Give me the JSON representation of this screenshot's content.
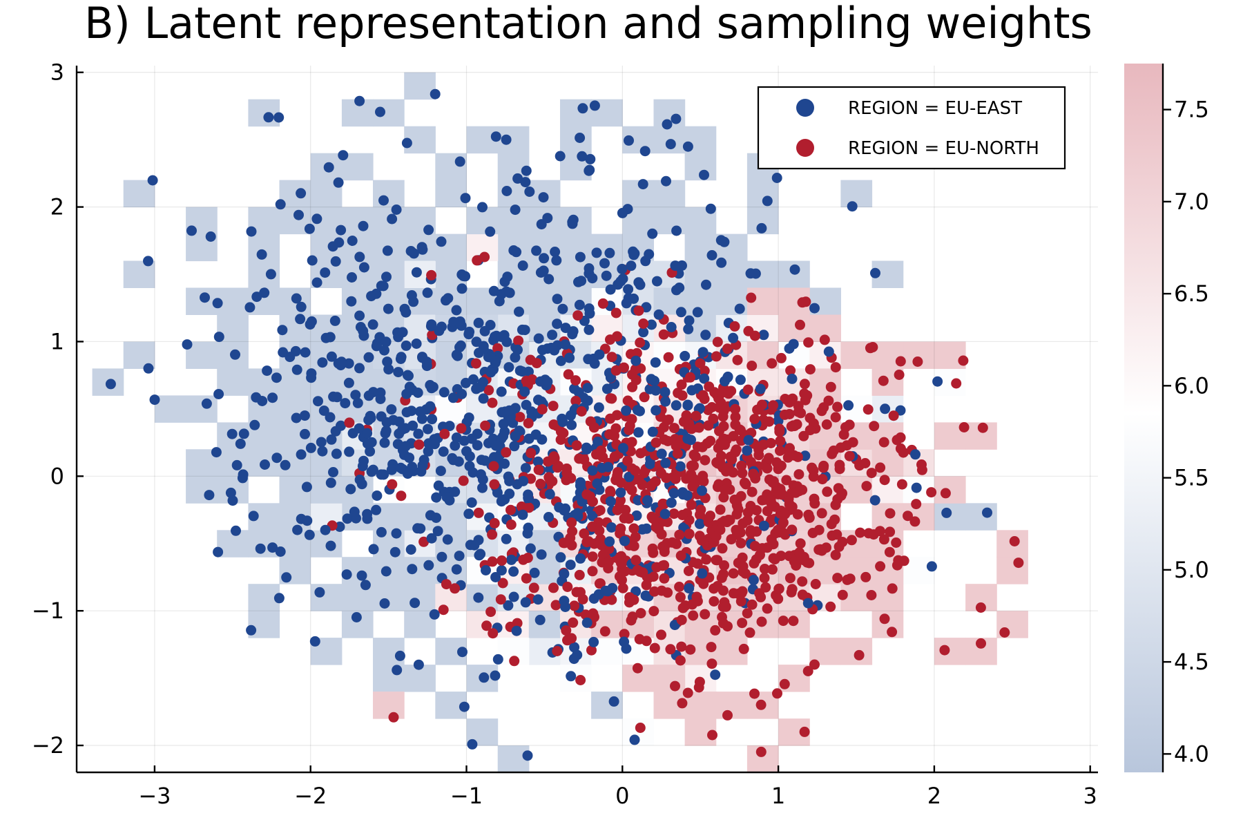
{
  "chart_data": {
    "type": "scatter",
    "title": "B) Latent representation and sampling weights",
    "xlabel": "",
    "ylabel": "",
    "xlim": [
      -3.5,
      3.05
    ],
    "ylim": [
      -2.2,
      3.05
    ],
    "x_ticks": [
      -3,
      -2,
      -1,
      0,
      1,
      2,
      3
    ],
    "x_tick_labels": [
      "−3",
      "−2",
      "−1",
      "0",
      "1",
      "2",
      "3"
    ],
    "y_ticks": [
      -2,
      -1,
      0,
      1,
      2,
      3
    ],
    "y_tick_labels": [
      "−2",
      "−1",
      "0",
      "1",
      "2",
      "3"
    ],
    "grid": true,
    "legend_position": "top-right",
    "series": [
      {
        "name": "REGION = EU-EAST",
        "color": "#1f4690",
        "n_points": 900,
        "center": [
          -0.7,
          0.55
        ],
        "spread": [
          0.9,
          0.9
        ],
        "seed": 7
      },
      {
        "name": "REGION = EU-NORTH",
        "color": "#b11e2e",
        "n_points": 900,
        "center": [
          0.45,
          -0.15
        ],
        "spread": [
          0.72,
          0.62
        ],
        "seed": 13
      }
    ],
    "background_heatmap": {
      "type": "heatmap",
      "bin_size": 0.2,
      "colorbar_range": [
        3.9,
        7.75
      ],
      "colorbar_ticks": [
        4.0,
        4.5,
        5.0,
        5.5,
        6.0,
        6.5,
        7.0,
        7.5
      ],
      "colorbar_tick_labels": [
        "4.0",
        "4.5",
        "5.0",
        "5.5",
        "6.0",
        "6.5",
        "7.0",
        "7.5"
      ],
      "colormap": {
        "low": "#b8c6dc",
        "mid": "#ffffff",
        "high": "#e8b8be"
      },
      "colormap_mid_value": 5.85
    }
  }
}
